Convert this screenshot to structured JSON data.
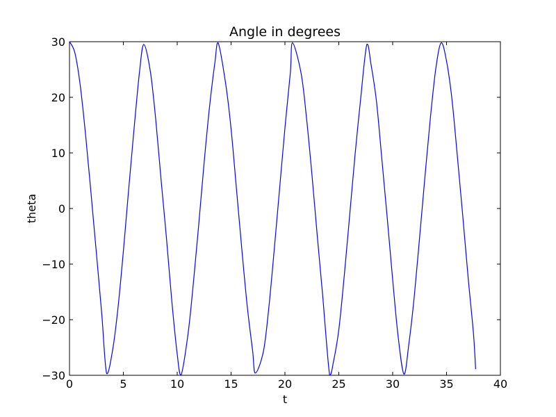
{
  "chart_data": {
    "type": "line",
    "title": "Angle in degrees",
    "xlabel": "t",
    "ylabel": "theta",
    "xlim": [
      0,
      40
    ],
    "ylim": [
      -30,
      30
    ],
    "xticks": [
      0,
      5,
      10,
      15,
      20,
      25,
      30,
      35,
      40
    ],
    "yticks": [
      -30,
      -20,
      -10,
      0,
      10,
      20,
      30
    ],
    "xtick_labels": [
      "0",
      "5",
      "10",
      "15",
      "20",
      "25",
      "30",
      "35",
      "40"
    ],
    "ytick_labels": [
      "−30",
      "−20",
      "−10",
      "0",
      "10",
      "20",
      "30"
    ],
    "grid": false,
    "legend": false,
    "series": [
      {
        "color": "#0000ff",
        "x": [
          0,
          0.5,
          1.0,
          1.5,
          2.0,
          2.5,
          3.0,
          3.45,
          4.0,
          4.5,
          5.0,
          5.5,
          6.0,
          6.5,
          6.9,
          7.5,
          8.0,
          8.5,
          9.0,
          9.5,
          10.0,
          10.35,
          11.0,
          11.5,
          12.0,
          12.5,
          13.0,
          13.5,
          13.8,
          14.5,
          15.0,
          15.5,
          16.0,
          16.5,
          17.0,
          17.25,
          18.0,
          18.5,
          19.0,
          19.5,
          20.0,
          20.5,
          20.7,
          21.5,
          22.0,
          22.5,
          23.0,
          23.5,
          24.15,
          24.5,
          25.0,
          25.5,
          26.0,
          26.5,
          27.0,
          27.6,
          28.0,
          28.5,
          29.0,
          29.5,
          30.0,
          30.5,
          31.05,
          31.5,
          32.0,
          32.5,
          33.0,
          33.5,
          34.0,
          34.5,
          35.0,
          35.5,
          36.0,
          36.5,
          37.0,
          37.5,
          37.7
        ],
        "y": [
          30.0,
          28.0,
          22.1,
          13.1,
          2.7,
          -8.1,
          -19.1,
          -29.7,
          -25.5,
          -17.9,
          -7.7,
          3.6,
          14.5,
          24.6,
          29.5,
          24.7,
          16.1,
          5.2,
          -5.3,
          -16.7,
          -26.2,
          -30.0,
          -22.6,
          -13.4,
          -2.8,
          8.3,
          18.3,
          26.3,
          29.8,
          22.4,
          14.3,
          3.5,
          -7.4,
          -17.6,
          -25.6,
          -29.6,
          -25.7,
          -17.9,
          -7.5,
          3.5,
          14.5,
          24.4,
          29.8,
          24.3,
          16.3,
          6.2,
          -4.9,
          -15.6,
          -30.0,
          -27.6,
          -21.8,
          -12.2,
          -1.4,
          9.5,
          19.2,
          29.5,
          25.8,
          19.2,
          8.8,
          -1.8,
          -12.8,
          -22.9,
          -29.8,
          -24.4,
          -15.9,
          -5.2,
          5.8,
          16.3,
          25.1,
          29.8,
          26.5,
          19.7,
          9.5,
          -1.2,
          -12.3,
          -22.5,
          -28.9
        ]
      }
    ]
  }
}
